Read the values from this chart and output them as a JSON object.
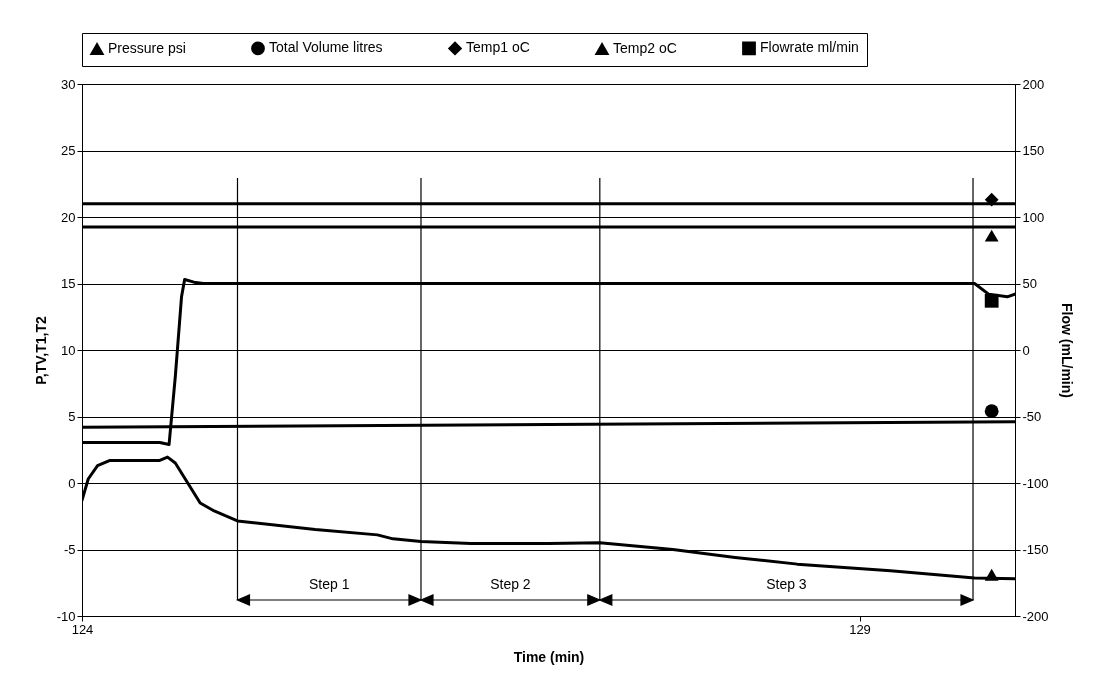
{
  "chart_data": {
    "type": "line",
    "xlabel": "Time (min)",
    "ylabel": "P,TV,T1,T2",
    "y2label": "Flow (mL/min)",
    "xlim": [
      124,
      130
    ],
    "xticks": [
      124,
      129
    ],
    "ylim": [
      -10,
      30
    ],
    "yticks": [
      -10,
      -5,
      0,
      5,
      10,
      15,
      20,
      25,
      30
    ],
    "y2lim": [
      -200,
      200
    ],
    "y2ticks": [
      -200,
      -150,
      -100,
      -50,
      0,
      50,
      100,
      150,
      200
    ],
    "grid": "y",
    "legend": "top",
    "line_style": "solid",
    "series": [
      {
        "color": "#000000",
        "x": [
          124,
          124.04,
          124.1,
          124.18,
          124.5,
          124.55,
          124.6,
          124.68,
          124.76,
          124.85,
          125,
          125.5,
          125.9,
          126,
          126.18,
          126.5,
          127,
          127.33,
          127.8,
          128.2,
          128.6,
          129.2,
          129.74,
          130
        ],
        "values": [
          -1.3,
          0.3,
          1.3,
          1.7,
          1.7,
          1.95,
          1.5,
          0,
          -1.5,
          -2.1,
          -2.85,
          -3.5,
          -3.9,
          -4.2,
          -4.4,
          -4.55,
          -4.55,
          -4.5,
          -5,
          -5.6,
          -6.1,
          -6.6,
          -7.15,
          -7.2
        ]
      },
      {
        "color": "#000000",
        "x": [
          124,
          127,
          130
        ],
        "values": [
          4.2,
          4.4,
          4.6
        ]
      },
      {
        "color": "#000000",
        "x": [
          124,
          127,
          130
        ],
        "values": [
          21,
          21,
          21
        ]
      },
      {
        "color": "#000000",
        "x": [
          124,
          127,
          130
        ],
        "values": [
          19.25,
          19.25,
          19.25
        ]
      },
      {
        "color": "#000000",
        "axis": "y2",
        "x": [
          124,
          124.5,
          124.56,
          124.6,
          124.64,
          124.66,
          124.72,
          124.78,
          129.74,
          129.83,
          129.95,
          130
        ],
        "values": [
          -69.5,
          -69.5,
          -71,
          -20,
          40,
          53,
          51,
          50,
          50,
          42,
          40,
          42
        ]
      },
      {
        "type": "scatter",
        "name": "Pressure psi",
        "color": "#000000",
        "marker": "triangle",
        "x": [
          129.85
        ],
        "values": [
          -6.9
        ]
      },
      {
        "type": "scatter",
        "name": "Total Volume litres",
        "color": "#000000",
        "marker": "circle",
        "x": [
          129.85
        ],
        "values": [
          5.4
        ]
      },
      {
        "type": "scatter",
        "name": "Temp1 oC",
        "color": "#000000",
        "marker": "diamond",
        "x": [
          129.85
        ],
        "values": [
          21.3
        ]
      },
      {
        "type": "scatter",
        "name": "Temp2 oC",
        "color": "#000000",
        "marker": "triangle",
        "x": [
          129.85
        ],
        "values": [
          18.6
        ]
      },
      {
        "type": "scatter",
        "name": "Flowrate ml/min",
        "color": "#000000",
        "marker": "square",
        "axis": "y2",
        "x": [
          129.85
        ],
        "values": [
          37
        ]
      }
    ],
    "ref_lines": [
      {
        "axis": "x",
        "value": 125
      },
      {
        "axis": "x",
        "value": 126.18
      },
      {
        "axis": "x",
        "value": 127.33
      },
      {
        "axis": "x",
        "value": 129.73
      }
    ],
    "annotations": [
      "Step 1",
      "Step 2",
      "Step 3"
    ]
  }
}
